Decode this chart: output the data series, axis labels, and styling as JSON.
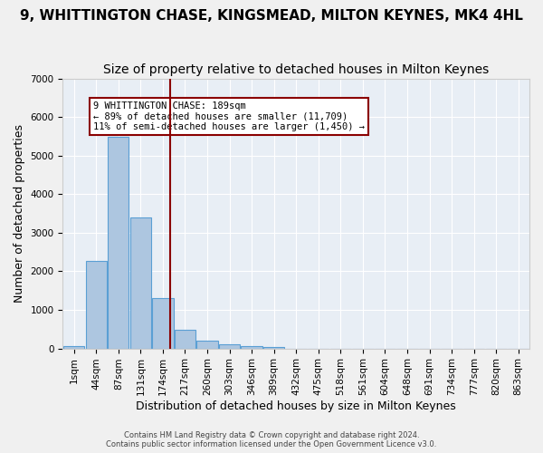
{
  "title": "9, WHITTINGTON CHASE, KINGSMEAD, MILTON KEYNES, MK4 4HL",
  "subtitle": "Size of property relative to detached houses in Milton Keynes",
  "xlabel": "Distribution of detached houses by size in Milton Keynes",
  "ylabel": "Number of detached properties",
  "footer_line1": "Contains HM Land Registry data © Crown copyright and database right 2024.",
  "footer_line2": "Contains public sector information licensed under the Open Government Licence v3.0.",
  "bin_labels": [
    "1sqm",
    "44sqm",
    "87sqm",
    "131sqm",
    "174sqm",
    "217sqm",
    "260sqm",
    "303sqm",
    "346sqm",
    "389sqm",
    "432sqm",
    "475sqm",
    "518sqm",
    "561sqm",
    "604sqm",
    "648sqm",
    "691sqm",
    "734sqm",
    "777sqm",
    "820sqm",
    "863sqm"
  ],
  "bar_values": [
    60,
    2280,
    5480,
    3400,
    1300,
    490,
    200,
    110,
    65,
    45,
    0,
    0,
    0,
    0,
    0,
    0,
    0,
    0,
    0,
    0,
    0
  ],
  "bar_color": "#adc6e0",
  "bar_edgecolor": "#5a9fd4",
  "bg_color": "#e8eef5",
  "grid_color": "#ffffff",
  "vline_x_index": 4.35,
  "vline_color": "#8b0000",
  "annotation_text": "9 WHITTINGTON CHASE: 189sqm\n← 89% of detached houses are smaller (11,709)\n11% of semi-detached houses are larger (1,450) →",
  "annotation_box_color": "#8b0000",
  "ylim": [
    0,
    7000
  ],
  "title_fontsize": 11,
  "subtitle_fontsize": 10,
  "tick_fontsize": 7.5,
  "ylabel_fontsize": 9,
  "xlabel_fontsize": 9
}
